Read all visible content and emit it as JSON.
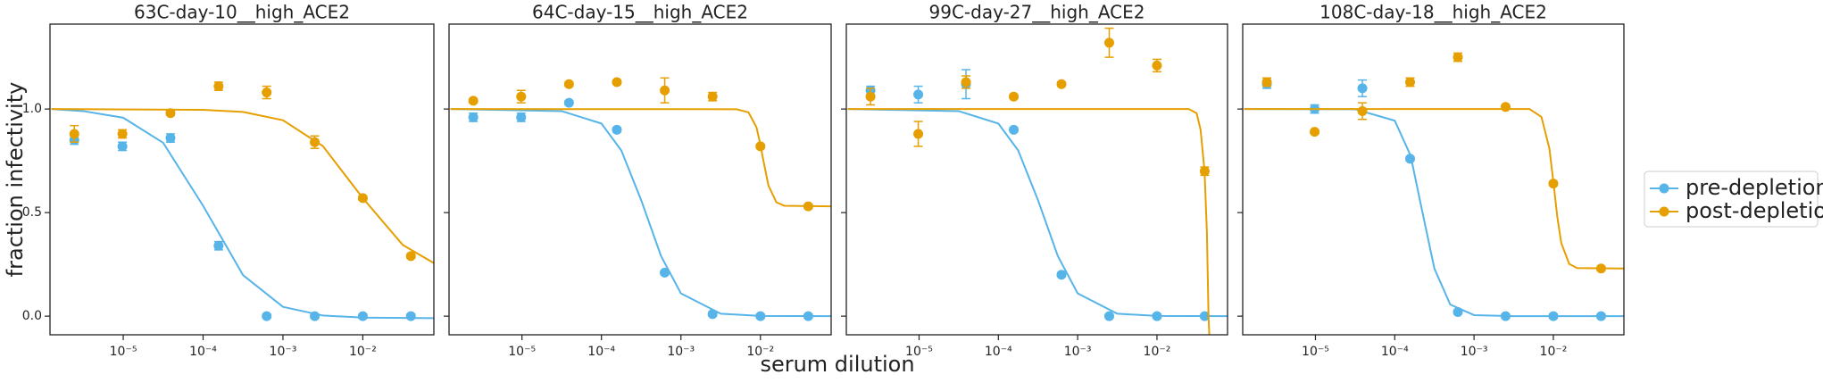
{
  "figure": {
    "xlabel": "serum dilution",
    "ylabel": "fraction infectivity"
  },
  "chart_data": [
    {
      "type": "scatter",
      "title": "63C-day-10__high_ACE2",
      "xscale": "log",
      "x": [
        2.441e-06,
        9.766e-06,
        3.906e-05,
        0.00015625,
        0.000625,
        0.0025,
        0.01,
        0.04
      ],
      "xlim": [
        1.21e-06,
        0.0776
      ],
      "ylim": [
        -0.09,
        1.41
      ],
      "xticks": [
        {
          "value": 1e-05,
          "label": "10⁻⁵"
        },
        {
          "value": 0.0001,
          "label": "10⁻⁴"
        },
        {
          "value": 0.001,
          "label": "10⁻³"
        },
        {
          "value": 0.01,
          "label": "10⁻²"
        }
      ],
      "yticks": [
        {
          "value": 0,
          "label": "0.0"
        },
        {
          "value": 0.5,
          "label": "0.5"
        },
        {
          "value": 1,
          "label": "1.0"
        }
      ],
      "series": [
        {
          "name": "pre-depletion",
          "color": "#56b4e9",
          "values": [
            0.85,
            0.82,
            0.86,
            0.34,
            0.0,
            0.0,
            0.0,
            0.0
          ],
          "errors": [
            0.02,
            0.02,
            0.02,
            0.02,
            0.01,
            0.01,
            0.01,
            0.01
          ],
          "fit": {
            "x": [
              1.259e-06,
              3.162e-06,
              1e-05,
              3.162e-05,
              0.0001,
              0.0003162,
              0.001,
              0.003162,
              0.01,
              0.07943
            ],
            "values": [
              1.0,
              0.99,
              0.958,
              0.837,
              0.533,
              0.198,
              0.045,
              0.003,
              -0.007,
              -0.01
            ]
          }
        },
        {
          "name": "post-depletion",
          "color": "#e69f00",
          "values": [
            0.88,
            0.88,
            0.98,
            1.11,
            1.08,
            0.84,
            0.57,
            0.29
          ],
          "errors": [
            0.04,
            0.02,
            0.01,
            0.02,
            0.03,
            0.03,
            0.01,
            0.01
          ],
          "fit": {
            "x": [
              1.259e-06,
              0.0001,
              0.0003162,
              0.001,
              0.003162,
              0.01,
              0.03162,
              0.07943
            ],
            "values": [
              1.0,
              0.996,
              0.986,
              0.946,
              0.821,
              0.57,
              0.344,
              0.254
            ]
          }
        }
      ]
    },
    {
      "type": "scatter",
      "title": "64C-day-15__high_ACE2",
      "xscale": "log",
      "ytick_labels": false,
      "x": [
        2.441e-06,
        9.766e-06,
        3.906e-05,
        0.00015625,
        0.000625,
        0.0025,
        0.01,
        0.04
      ],
      "xlim": [
        1.21e-06,
        0.0776
      ],
      "ylim": [
        -0.09,
        1.41
      ],
      "xticks": [
        {
          "value": 1e-05,
          "label": "10⁻⁵"
        },
        {
          "value": 0.0001,
          "label": "10⁻⁴"
        },
        {
          "value": 0.001,
          "label": "10⁻³"
        },
        {
          "value": 0.01,
          "label": "10⁻²"
        }
      ],
      "yticks": [
        0,
        0.5,
        1
      ],
      "series": [
        {
          "name": "pre-depletion",
          "color": "#56b4e9",
          "values": [
            0.96,
            0.96,
            1.03,
            0.9,
            0.21,
            0.01,
            0.0,
            0.0
          ],
          "errors": [
            0.02,
            0.02,
            0.01,
            0.01,
            0.01,
            0.01,
            0.01,
            0.01
          ],
          "fit": {
            "x": [
              1.259e-06,
              3.162e-05,
              0.0001,
              0.0001778,
              0.0003162,
              0.0005623,
              0.001,
              0.003162,
              0.01,
              0.07943
            ],
            "values": [
              1.0,
              0.99,
              0.93,
              0.8,
              0.56,
              0.29,
              0.11,
              0.012,
              0.001,
              0.0
            ]
          }
        },
        {
          "name": "post-depletion",
          "color": "#e69f00",
          "values": [
            1.04,
            1.06,
            1.12,
            1.13,
            1.09,
            1.06,
            0.82,
            0.53
          ],
          "errors": [
            0.01,
            0.03,
            0.01,
            0.01,
            0.06,
            0.02,
            0.01,
            0.01
          ],
          "fit": {
            "x": [
              1.259e-06,
              0.005012,
              0.007079,
              0.008913,
              0.01,
              0.01072,
              0.01259,
              0.01585,
              0.01995,
              0.07943
            ],
            "values": [
              1.0,
              0.999,
              0.984,
              0.912,
              0.828,
              0.765,
              0.632,
              0.55,
              0.533,
              0.53
            ]
          }
        }
      ]
    },
    {
      "type": "scatter",
      "title": "99C-day-27__high_ACE2",
      "xscale": "log",
      "ytick_labels": false,
      "x": [
        2.441e-06,
        9.766e-06,
        3.906e-05,
        0.00015625,
        0.000625,
        0.0025,
        0.01,
        0.04
      ],
      "xlim": [
        1.21e-06,
        0.0776
      ],
      "ylim": [
        -0.09,
        1.41
      ],
      "xticks": [
        {
          "value": 1e-05,
          "label": "10⁻⁵"
        },
        {
          "value": 0.0001,
          "label": "10⁻⁴"
        },
        {
          "value": 0.001,
          "label": "10⁻³"
        },
        {
          "value": 0.01,
          "label": "10⁻²"
        }
      ],
      "yticks": [
        0,
        0.5,
        1
      ],
      "series": [
        {
          "name": "pre-depletion",
          "color": "#56b4e9",
          "values": [
            1.09,
            1.07,
            1.12,
            0.9,
            0.2,
            0.0,
            0.0,
            0.0
          ],
          "errors": [
            0.02,
            0.04,
            0.07,
            0.01,
            0.01,
            0.01,
            0.01,
            0.01
          ],
          "fit": {
            "x": [
              1.259e-06,
              3.162e-05,
              0.0001,
              0.0001778,
              0.0003162,
              0.0005623,
              0.001,
              0.003162,
              0.01,
              0.07943
            ],
            "values": [
              1.0,
              0.99,
              0.93,
              0.8,
              0.56,
              0.29,
              0.11,
              0.012,
              0.001,
              0.0
            ]
          }
        },
        {
          "name": "post-depletion",
          "color": "#e69f00",
          "values": [
            1.06,
            0.88,
            1.13,
            1.06,
            1.12,
            1.32,
            1.21,
            0.7
          ],
          "errors": [
            0.04,
            0.06,
            0.03,
            0.01,
            0.01,
            0.07,
            0.03,
            0.02
          ],
          "fit": {
            "x": [
              1.259e-06,
              0.02512,
              0.03162,
              0.03548,
              0.03981,
              0.04266,
              0.04467,
              0.04571
            ],
            "values": [
              1.0,
              1.0,
              0.98,
              0.9,
              0.7,
              0.4,
              0.0,
              -0.09
            ]
          }
        }
      ]
    },
    {
      "type": "scatter",
      "title": "108C-day-18__high_ACE2",
      "xscale": "log",
      "ytick_labels": false,
      "x": [
        2.441e-06,
        9.766e-06,
        3.906e-05,
        0.00015625,
        0.000625,
        0.0025,
        0.01,
        0.04
      ],
      "xlim": [
        1.21e-06,
        0.0776
      ],
      "ylim": [
        -0.09,
        1.41
      ],
      "xticks": [
        {
          "value": 1e-05,
          "label": "10⁻⁵"
        },
        {
          "value": 0.0001,
          "label": "10⁻⁴"
        },
        {
          "value": 0.001,
          "label": "10⁻³"
        },
        {
          "value": 0.01,
          "label": "10⁻²"
        }
      ],
      "yticks": [
        0,
        0.5,
        1
      ],
      "series": [
        {
          "name": "pre-depletion",
          "color": "#56b4e9",
          "values": [
            1.12,
            1.0,
            1.1,
            0.76,
            0.02,
            0.0,
            0.0,
            0.0
          ],
          "errors": [
            0.02,
            0.02,
            0.04,
            0.01,
            0.01,
            0.01,
            0.01,
            0.01
          ],
          "fit": {
            "x": [
              1.259e-06,
              3.162e-05,
              0.0001,
              0.0001585,
              0.0002239,
              0.0003162,
              0.0005012,
              0.001,
              0.003162,
              0.07943
            ],
            "values": [
              1.0,
              0.999,
              0.944,
              0.775,
              0.5,
              0.23,
              0.056,
              0.005,
              0.0,
              0.0
            ]
          }
        },
        {
          "name": "post-depletion",
          "color": "#e69f00",
          "values": [
            1.13,
            0.89,
            0.99,
            1.13,
            1.25,
            1.01,
            0.64,
            0.23
          ],
          "errors": [
            0.02,
            0.01,
            0.04,
            0.02,
            0.02,
            0.01,
            0.01,
            0.01
          ],
          "fit": {
            "x": [
              1.259e-06,
              0.005012,
              0.007079,
              0.008913,
              0.01,
              0.01122,
              0.01259,
              0.01585,
              0.01995,
              0.07943
            ],
            "values": [
              1.0,
              1.0,
              0.962,
              0.809,
              0.65,
              0.479,
              0.353,
              0.252,
              0.232,
              0.23
            ]
          }
        }
      ]
    }
  ]
}
